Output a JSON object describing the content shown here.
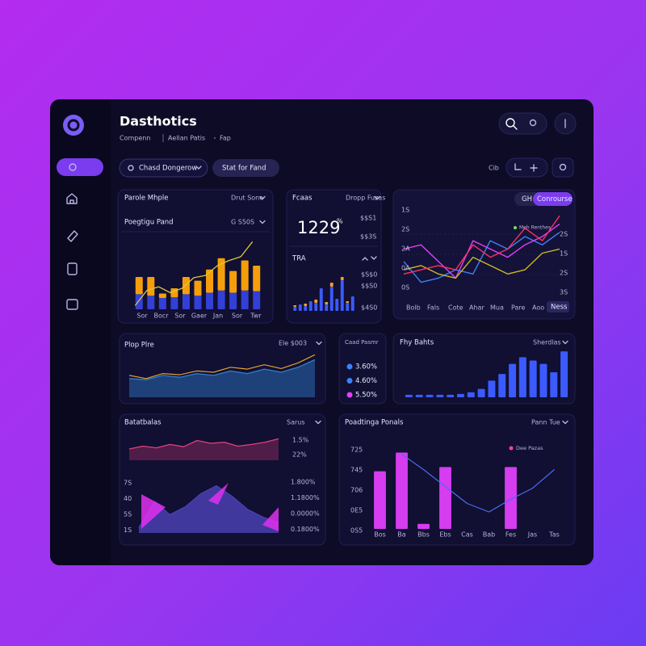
{
  "header": {
    "title": "Dasthotics",
    "breadcrumb": [
      "Compenn",
      "Aellan Patis",
      "Fap"
    ]
  },
  "toolbar": {
    "filter": "Chasd Dongerow",
    "action": "Stat for Fand",
    "label": "Cib"
  },
  "cards": [
    {
      "title": "Parole Mhple",
      "menu": "Drut Sone",
      "subtitle": "Poegtigu Pand",
      "submenu": "G S50S",
      "chart": {
        "type": "bar",
        "stacked": true,
        "ylim": [
          0,
          100
        ],
        "x_labels": [
          "Sor",
          "Bocr",
          "Sor",
          "Gaer",
          "Jan",
          "Sor",
          "Twr"
        ],
        "series": [
          {
            "color": "#3340d6",
            "values": [
              20,
              18,
              15,
              16,
              20,
              18,
              22,
              25,
              22,
              25,
              24
            ]
          },
          {
            "color": "#f59e0b",
            "values": [
              23,
              25,
              6,
              12,
              23,
              20,
              31,
              43,
              29,
              40,
              34
            ]
          }
        ],
        "line": {
          "color": "#d9c83a",
          "values": [
            5,
            25,
            30,
            22,
            28,
            42,
            45,
            58,
            65,
            70,
            90
          ]
        }
      }
    },
    {
      "title": "Fcaas",
      "menu": "Dropp Fuzas",
      "kpi": 1229,
      "kpi_unit": "%",
      "side_labels": [
        "$$S1",
        "$$3S"
      ],
      "subtitle": "TRA",
      "chart": {
        "type": "bar",
        "stacked": true,
        "ylim": [
          0,
          50
        ],
        "y_labels": [
          "$S$0",
          "$$S0",
          "$4S0"
        ],
        "series": [
          {
            "color": "#3b5bff",
            "values": [
              5,
              8,
              6,
              12,
              10,
              28,
              8,
              30,
              15,
              38,
              10,
              18
            ]
          },
          {
            "color": "#f5a020",
            "values": [
              2,
              0,
              3,
              0,
              4,
              0,
              3,
              5,
              0,
              4,
              2,
              0
            ]
          }
        ]
      }
    },
    {
      "button": [
        "GH",
        "Conrourse"
      ],
      "legend": {
        "name": "Meh Renthes",
        "color": "#6ee35a"
      },
      "tag": "Ness",
      "chart": {
        "type": "line",
        "ylim": [
          0,
          100
        ],
        "y_labels": [
          "1S",
          "2S",
          "2A",
          "0A",
          "0S"
        ],
        "y2_labels": [
          "2S",
          "1S",
          "2S",
          "3S"
        ],
        "x_labels": [
          "Bolb",
          "Fals",
          "Cote",
          "Ahar",
          "Mua",
          "Pare",
          "Aoo"
        ],
        "series": [
          {
            "color": "#3b82f6",
            "values": [
              40,
              15,
              20,
              30,
              25,
              65,
              55,
              70,
              60,
              75
            ]
          },
          {
            "color": "#e040fb",
            "values": [
              55,
              60,
              40,
              20,
              65,
              55,
              45,
              60,
              70,
              85
            ]
          },
          {
            "color": "#c8b820",
            "values": [
              30,
              35,
              25,
              20,
              45,
              35,
              25,
              30,
              50,
              55
            ]
          },
          {
            "color": "#ff3060",
            "values": [
              25,
              30,
              35,
              30,
              60,
              45,
              55,
              80,
              65,
              95
            ]
          }
        ]
      }
    },
    {
      "title": "Plop Plre",
      "menu": "Ele $003",
      "chart": {
        "type": "area",
        "ylim": [
          0,
          80
        ],
        "series": [
          {
            "color": "#2f7fd0",
            "values": [
              30,
              28,
              35,
              32,
              38,
              35,
              42,
              38,
              45,
              40,
              48,
              60
            ]
          },
          {
            "color": "#e0a030",
            "values": [
              35,
              30,
              38,
              36,
              42,
              40,
              48,
              45,
              52,
              46,
              55,
              68
            ]
          }
        ]
      }
    },
    {
      "title": "Caad Pasmr",
      "legend": [
        {
          "color": "#3b82f6",
          "label": "3.60%"
        },
        {
          "color": "#3b82f6",
          "label": "4.60%"
        },
        {
          "color": "#e040fb",
          "label": "5.50%"
        }
      ]
    },
    {
      "title": "Fhy Bahts",
      "menu": "Sherdlas",
      "chart": {
        "type": "bar",
        "ylim": [
          0,
          60
        ],
        "series": [
          {
            "color": "#3b5bff",
            "values": [
              3,
              3,
              3,
              3,
              3,
              4,
              6,
              10,
              20,
              28,
              40,
              48,
              44,
              40,
              30,
              55
            ]
          }
        ]
      }
    },
    {
      "title": "Batatbalas",
      "menu": "Sarus",
      "chart": {
        "type": "area",
        "ylim": [
          0,
          50
        ],
        "right_labels": [
          "1.5%",
          "22%"
        ],
        "series": [
          {
            "color": "#e0407a",
            "values": [
              20,
              25,
              22,
              28,
              24,
              35,
              30,
              32,
              25,
              28,
              32,
              38
            ]
          }
        ]
      },
      "chart2": {
        "type": "area",
        "ylim": [
          0,
          100
        ],
        "y_labels": [
          "7S",
          "40",
          "5S",
          "1S"
        ],
        "right_labels": [
          "1.800%",
          "1.1800%",
          "0.0000%",
          "0.1800%"
        ],
        "series": [
          {
            "color": "#4a3fb0",
            "values": [
              10,
              60,
              35,
              50,
              75,
              90,
              70,
              45,
              30,
              20
            ]
          }
        ]
      }
    },
    {
      "title": "Poadtinga Ponals",
      "menu": "Pann Tue",
      "legend": {
        "name": "Dee Pazas",
        "color": "#ff3ea5"
      },
      "chart": {
        "type": "bar",
        "ylim": [
          0,
          100
        ],
        "y_labels": [
          "725",
          "745",
          "706",
          "0E5",
          "0S5"
        ],
        "categories": [
          "Bos",
          "Ba",
          "Bbs",
          "Ebs",
          "Cas",
          "Bab",
          "Fes",
          "Jas",
          "Tas"
        ],
        "series": [
          {
            "color": "#d63cf0",
            "values": [
              68,
              90,
              6,
              73,
              null,
              null,
              73,
              null,
              null
            ]
          }
        ],
        "line": {
          "color": "#4a6cf0",
          "values": [
            null,
            88,
            70,
            50,
            30,
            20,
            35,
            48,
            70
          ]
        }
      }
    }
  ]
}
